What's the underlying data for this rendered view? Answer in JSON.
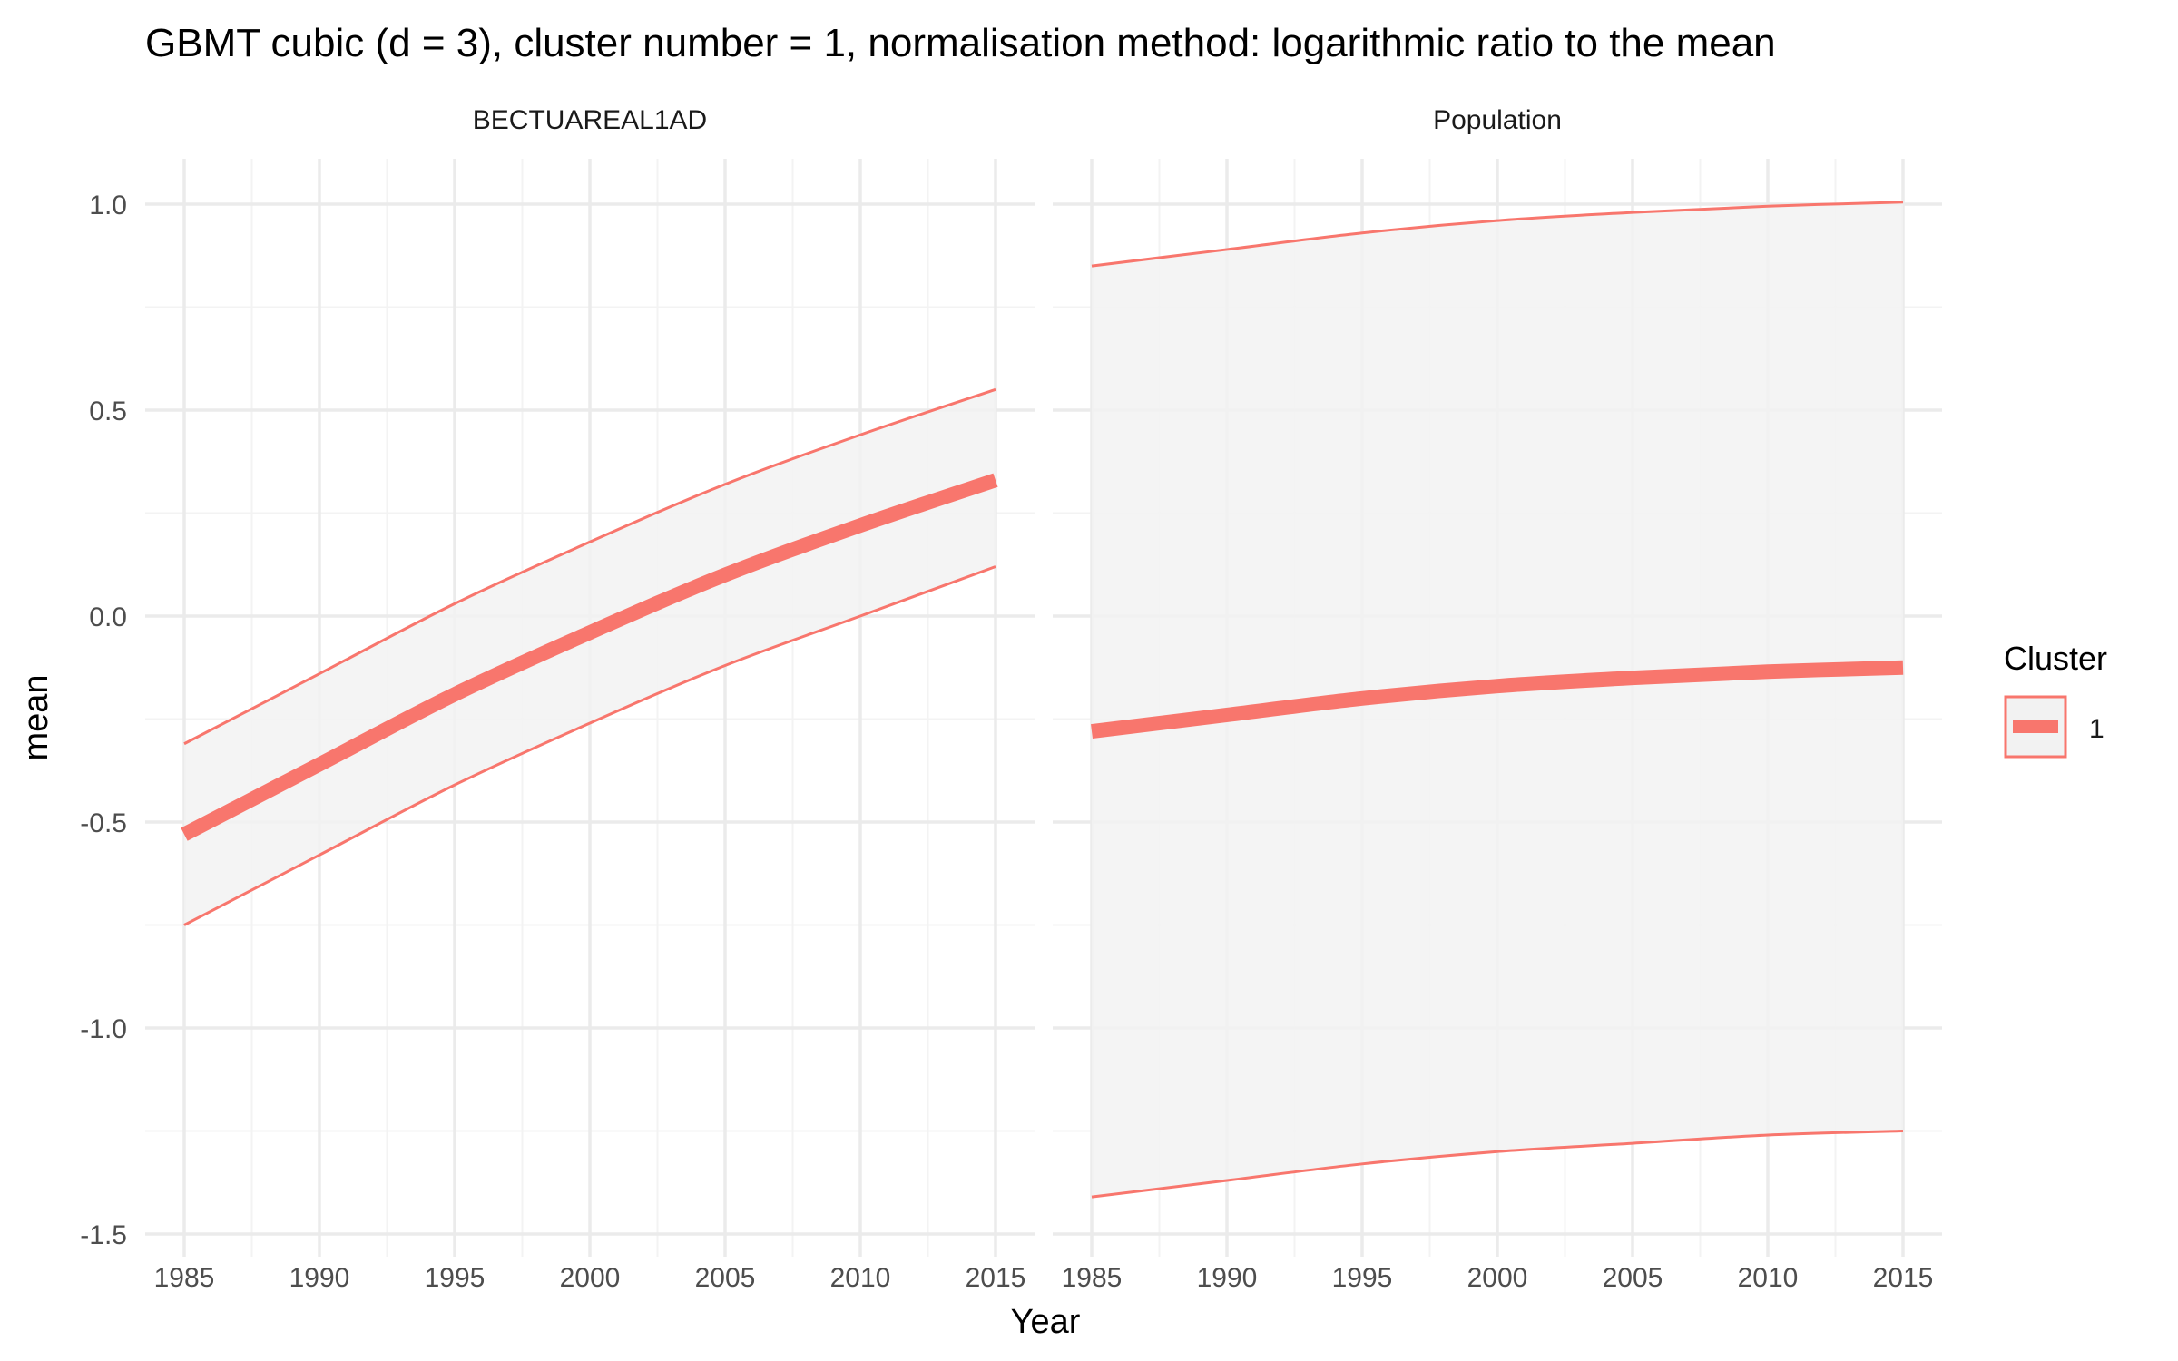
{
  "title": "GBMT cubic (d = 3), cluster number = 1, normalisation method: logarithmic ratio to the mean",
  "xlabel": "Year",
  "ylabel": "mean",
  "legend": {
    "title": "Cluster",
    "entries": [
      {
        "label": "1",
        "color": "#F8766D"
      }
    ]
  },
  "colors": {
    "series": "#F8766D",
    "band_fill": "#f2f2f2",
    "grid_major": "#ebebeb",
    "grid_minor": "#f3f3f3",
    "axis_text": "#4d4d4d",
    "text": "#1a1a1a"
  },
  "chart_data": [
    {
      "type": "line",
      "facet": "BECTUAREAL1AD",
      "xlim": [
        1985,
        2015
      ],
      "ylim": [
        -1.5,
        1.0
      ],
      "x_ticks": [
        1985,
        1990,
        1995,
        2000,
        2005,
        2010,
        2015
      ],
      "y_ticks": [
        -1.5,
        -1.0,
        -0.5,
        0.0,
        0.5,
        1.0
      ],
      "y_tick_labels": [
        "-1.5",
        "-1.0",
        "-0.5",
        "0.0",
        "0.5",
        "1.0"
      ],
      "grid": true,
      "x": [
        1985,
        1990,
        1995,
        2000,
        2005,
        2010,
        2015
      ],
      "series": [
        {
          "name": "1",
          "values": [
            -0.53,
            -0.36,
            -0.19,
            -0.04,
            0.1,
            0.22,
            0.33
          ],
          "lower": [
            -0.75,
            -0.58,
            -0.41,
            -0.26,
            -0.12,
            0.0,
            0.12
          ],
          "upper": [
            -0.31,
            -0.14,
            0.03,
            0.18,
            0.32,
            0.44,
            0.55
          ]
        }
      ]
    },
    {
      "type": "line",
      "facet": "Population",
      "xlim": [
        1985,
        2015
      ],
      "ylim": [
        -1.5,
        1.0
      ],
      "x_ticks": [
        1985,
        1990,
        1995,
        2000,
        2005,
        2010,
        2015
      ],
      "y_ticks": [
        -1.5,
        -1.0,
        -0.5,
        0.0,
        0.5,
        1.0
      ],
      "grid": true,
      "x": [
        1985,
        1990,
        1995,
        2000,
        2005,
        2010,
        2015
      ],
      "series": [
        {
          "name": "1",
          "values": [
            -0.28,
            -0.24,
            -0.2,
            -0.17,
            -0.15,
            -0.135,
            -0.125
          ],
          "lower": [
            -1.41,
            -1.37,
            -1.33,
            -1.3,
            -1.28,
            -1.26,
            -1.25
          ],
          "upper": [
            0.85,
            0.89,
            0.93,
            0.96,
            0.98,
            0.995,
            1.005
          ]
        }
      ]
    }
  ]
}
